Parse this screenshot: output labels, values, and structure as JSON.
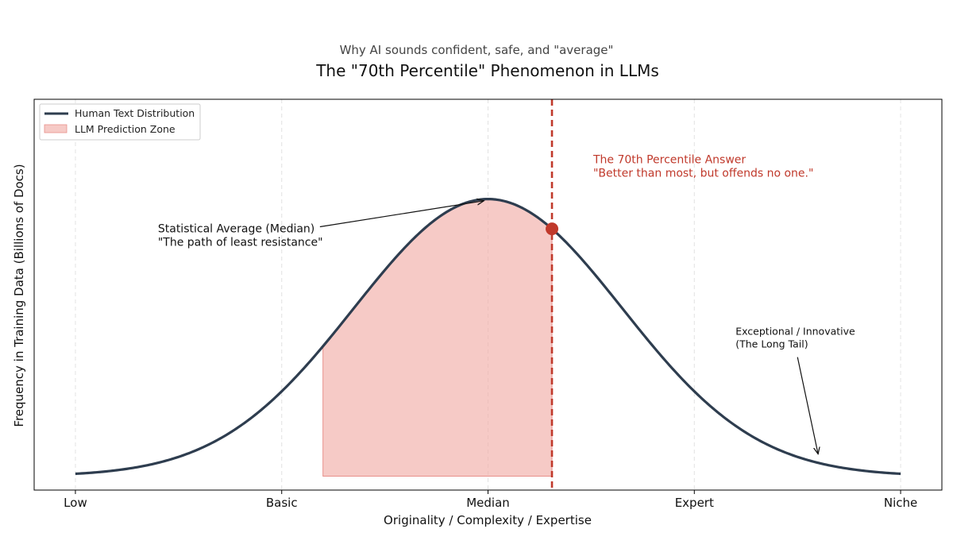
{
  "chart_data": {
    "type": "line",
    "subtitle": "Why AI sounds confident, safe, and \"average\"",
    "title": "The \"70th Percentile\" Phenomenon in LLMs",
    "xlabel": "Originality / Complexity / Expertise",
    "ylabel": "Frequency in Training Data (Billions of Docs)",
    "xlim": [
      -0.2,
      4.2
    ],
    "ylim": [
      -0.05,
      1.36
    ],
    "x_ticks": [
      0,
      1,
      2,
      3,
      4
    ],
    "x_tick_labels": [
      "Low",
      "Basic",
      "Median",
      "Expert",
      "Niche"
    ],
    "grid": "vertical dashed",
    "curve": {
      "name": "Human Text Distribution",
      "mean": 2.0,
      "sd": 0.65,
      "peak": 1.0,
      "color": "#2e3d4f"
    },
    "fill": {
      "name": "LLM Prediction Zone",
      "x_start": 1.2,
      "x_end": 2.31,
      "color": "#f2b3ae"
    },
    "threshold": {
      "x": 2.31,
      "color": "#c0392b"
    },
    "marker": {
      "x": 2.31,
      "color": "#c0392b"
    },
    "legend_position": "top-left",
    "annotations": {
      "median": {
        "lines": [
          "Statistical Average (Median)",
          "\"The path of least resistance\""
        ],
        "text_x": 0.4,
        "text_y": 0.88,
        "arrow_to_x": 1.98
      },
      "percentile": {
        "lines": [
          "The 70th Percentile Answer",
          "\"Better than most, but offends no one.\""
        ],
        "text_x": 2.51,
        "text_y": 1.13,
        "color": "#c0392b"
      },
      "tail": {
        "lines": [
          "Exceptional / Innovative",
          "(The Long Tail)"
        ],
        "text_x": 3.2,
        "text_y": 0.51,
        "arrow_to_x": 3.6,
        "arrow_to_y": 0.08
      }
    }
  }
}
